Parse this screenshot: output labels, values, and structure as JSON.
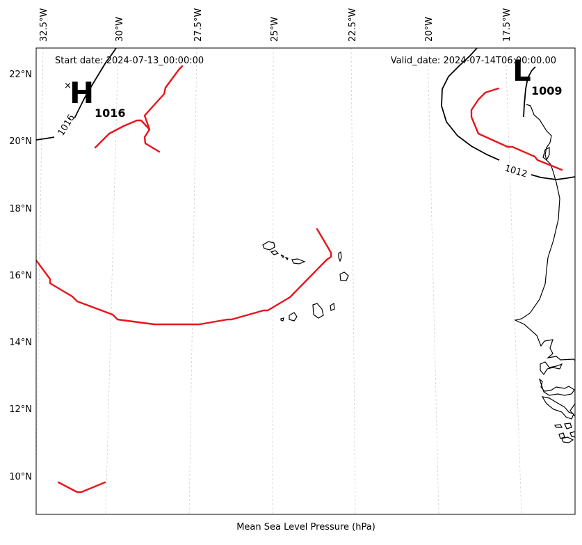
{
  "map": {
    "start_date": "Start date: 2024-07-13_00:00:00",
    "valid_date": "Valid_date: 2024-07-14T06:00:00.00",
    "caption": "Mean Sea Level Pressure (hPa)",
    "lon_ticks": [
      "32.5°W",
      "30°W",
      "27.5°W",
      "25°W",
      "22.5°W",
      "20°W",
      "17.5°W"
    ],
    "lat_ticks": [
      "22°N",
      "20°N",
      "18°N",
      "16°N",
      "14°N",
      "12°N",
      "10°N"
    ],
    "high_center": {
      "letter": "H",
      "value": "1016",
      "marker": "×"
    },
    "low_center": {
      "letter": "L",
      "value": "1009"
    },
    "isobar_labels": [
      "1016",
      "1012"
    ],
    "colors": {
      "front": "#e8141b",
      "isobar": "#000000",
      "grid": "#cfcfcf"
    }
  }
}
